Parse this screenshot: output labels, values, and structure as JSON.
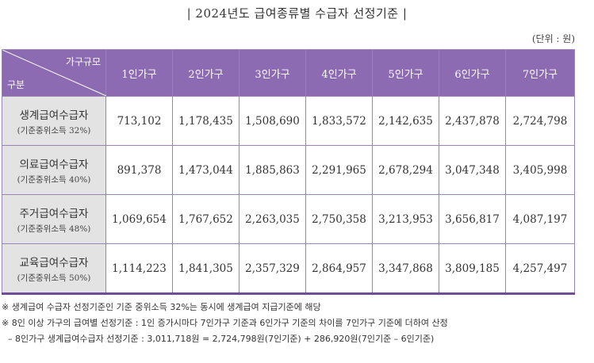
{
  "title": "| 2024년도 급여종류별 수급자 선정기준 |",
  "unit": "(단위 : 원)",
  "table": {
    "corner_top": "가구규모",
    "corner_bottom": "구분",
    "columns": [
      "1인가구",
      "2인가구",
      "3인가구",
      "4인가구",
      "5인가구",
      "6인가구",
      "7인가구"
    ],
    "rows": [
      {
        "name": "생계급여수급자",
        "sub": "(기준중위소득 32%)",
        "values": [
          "713,102",
          "1,178,435",
          "1,508,690",
          "1,833,572",
          "2,142,635",
          "2,437,878",
          "2,724,798"
        ]
      },
      {
        "name": "의료급여수급자",
        "sub": "(기준중위소득 40%)",
        "values": [
          "891,378",
          "1,473,044",
          "1,885,863",
          "2,291,965",
          "2,678,294",
          "3,047,348",
          "3,405,998"
        ]
      },
      {
        "name": "주거급여수급자",
        "sub": "(기준중위소득 48%)",
        "values": [
          "1,069,654",
          "1,767,652",
          "2,263,035",
          "2,750,358",
          "3,213,953",
          "3,656,817",
          "4,087,197"
        ]
      },
      {
        "name": "교육급여수급자",
        "sub": "(기준중위소득 50%)",
        "values": [
          "1,114,223",
          "1,841,305",
          "2,357,329",
          "2,864,957",
          "3,347,868",
          "3,809,185",
          "4,257,497"
        ]
      }
    ]
  },
  "notes": [
    "※ 생계급여 수급자 선정기준인 기준 중위소득 32%는 동시에 생계급여 지급기준에 해당",
    "※ 8인 이상 가구의 급여별 선정기준 : 1인 증가시마다 7인가구 기준과 6인가구 기준의 차이를 7인가구 기준에 더하여 산정",
    "– 8인가구 생계급여수급자 선정기준 : 3,011,718원 = 2,724,798원(7인기준) + 286,920원(7인기준 – 6인기준)"
  ],
  "colors": {
    "header_bg": "#8c6bb3",
    "header_border": "#6f4e97",
    "row_label_bg": "#e3e3e3",
    "grid_line": "#9a84b4"
  }
}
